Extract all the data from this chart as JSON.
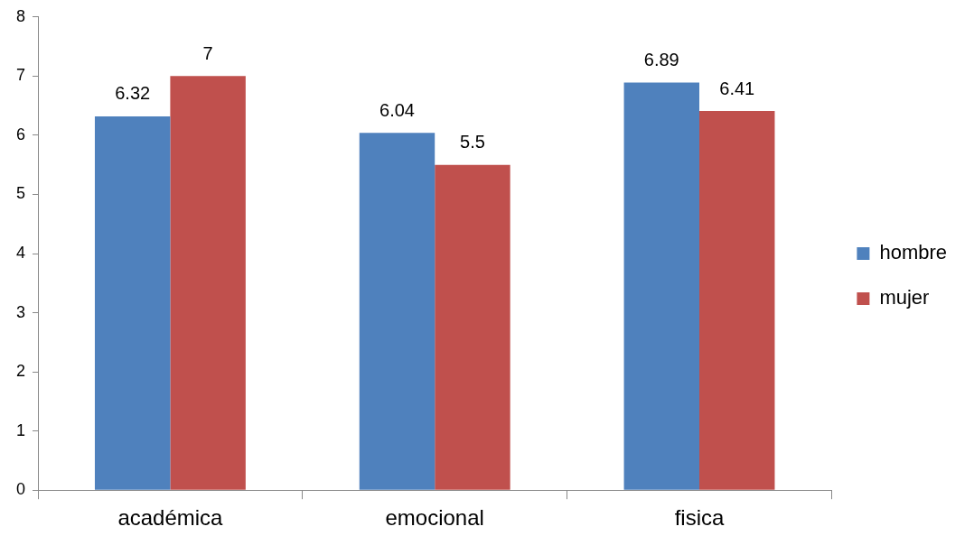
{
  "chart_data": {
    "type": "bar",
    "categories": [
      "académica",
      "emocional",
      "fisica"
    ],
    "series": [
      {
        "name": "hombre",
        "color": "#4f81bd",
        "values": [
          6.32,
          6.04,
          6.89
        ]
      },
      {
        "name": "mujer",
        "color": "#c0504d",
        "values": [
          7,
          5.5,
          6.41
        ]
      }
    ],
    "ylim": [
      0,
      8
    ],
    "yticks": [
      0,
      1,
      2,
      3,
      4,
      5,
      6,
      7,
      8
    ],
    "grid": false,
    "legend": "right",
    "data_labels": true
  }
}
